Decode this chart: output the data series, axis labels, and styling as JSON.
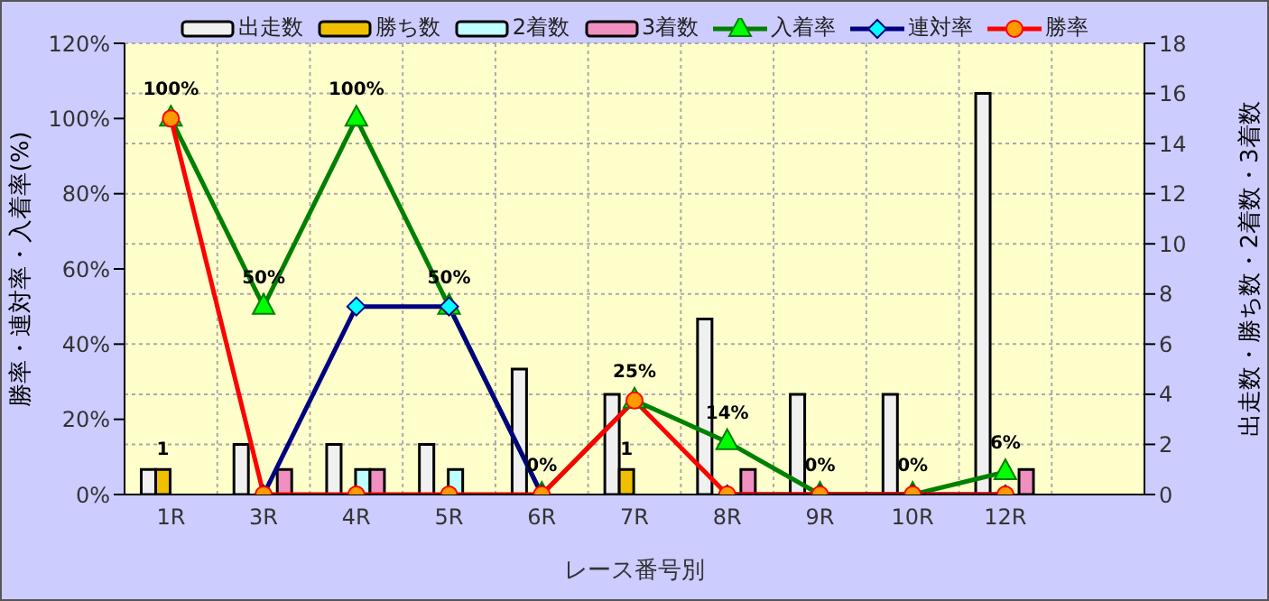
{
  "chart_data": {
    "type": "bar",
    "xlabel": "レース番号別",
    "ylabel": "勝率・連対率・入着率(%)",
    "y2label": "出走数・勝ち数・2着数・3着数",
    "categories": [
      "1R",
      "3R",
      "4R",
      "5R",
      "6R",
      "7R",
      "8R",
      "9R",
      "10R",
      "12R",
      null
    ],
    "series": [
      {
        "name": "出走数",
        "axis": "y2",
        "color": "#f0f0f0",
        "values": [
          1,
          2,
          2,
          2,
          5,
          4,
          7,
          4,
          4,
          16,
          null
        ]
      },
      {
        "name": "勝ち数",
        "axis": "y2",
        "color": "#f0c000",
        "values": [
          1,
          0,
          0,
          0,
          0,
          1,
          0,
          0,
          0,
          0,
          null
        ],
        "value_labels": [
          "1",
          null,
          null,
          null,
          null,
          "1",
          null,
          null,
          null,
          null,
          null
        ]
      },
      {
        "name": "2着数",
        "axis": "y2",
        "color": "#c0ffff",
        "values": [
          0,
          0,
          1,
          1,
          0,
          0,
          0,
          0,
          0,
          0,
          null
        ]
      },
      {
        "name": "3着数",
        "axis": "y2",
        "color": "#f090c0",
        "values": [
          0,
          1,
          1,
          0,
          0,
          0,
          1,
          0,
          0,
          1,
          null
        ]
      },
      {
        "name": "入着率",
        "type": "line",
        "axis": "y",
        "color": "#008000",
        "marker": "triangle",
        "values": [
          100,
          50,
          100,
          50,
          0,
          25,
          14,
          0,
          0,
          6,
          null
        ],
        "value_labels": [
          "100%",
          "50%",
          "100%",
          "50%",
          "0%",
          "25%",
          "14%",
          "0%",
          "0%",
          "6%",
          null
        ]
      },
      {
        "name": "連対率",
        "type": "line",
        "axis": "y",
        "color": "#000080",
        "marker": "diamond",
        "values": [
          null,
          0,
          50,
          50,
          0,
          null,
          0,
          0,
          0,
          0,
          null
        ]
      },
      {
        "name": "勝率",
        "type": "line",
        "axis": "y",
        "color": "#ff0000",
        "marker": "circle",
        "values": [
          100,
          0,
          0,
          0,
          0,
          25,
          0,
          0,
          0,
          0,
          null
        ]
      }
    ],
    "ylim": [
      0,
      120
    ],
    "yticks": [
      {
        "value": 0,
        "label": "0%"
      },
      {
        "value": 20,
        "label": "20%"
      },
      {
        "value": 40,
        "label": "40%"
      },
      {
        "value": 60,
        "label": "60%"
      },
      {
        "value": 80,
        "label": "80%"
      },
      {
        "value": 100,
        "label": "100%"
      },
      {
        "value": 120,
        "label": "120%"
      }
    ],
    "y2lim": [
      0,
      18
    ],
    "y2ticks": [
      0,
      2,
      4,
      6,
      8,
      10,
      12,
      14,
      16,
      18
    ],
    "grid": true,
    "legend": "top"
  }
}
